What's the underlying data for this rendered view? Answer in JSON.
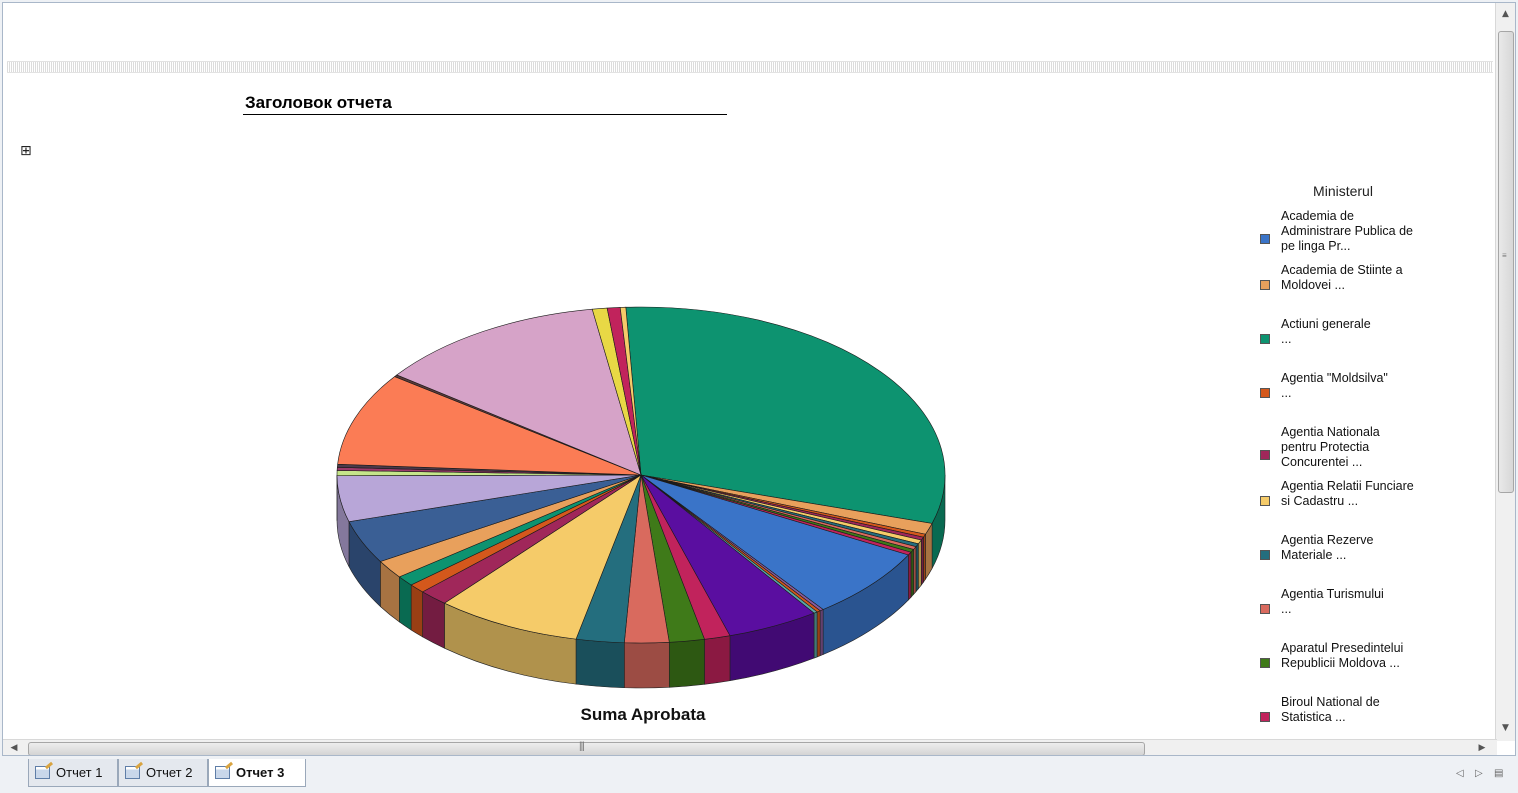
{
  "report": {
    "title": "Заголовок отчета",
    "expand_glyph": "⊞"
  },
  "chart_data": {
    "type": "pie",
    "title": "Suma Aprobata",
    "legend_title": "Ministerul",
    "legend_placement": "right",
    "series": [
      {
        "name": "Academia de Administrare Publica de pe linga Pr...",
        "value": 7.0,
        "color": "#3a74c8"
      },
      {
        "name": "Academia de Stiinte a Moldovei",
        "value": 1.1,
        "color": "#e8a05c"
      },
      {
        "name": "Actiuni generale",
        "value": 31.0,
        "color": "#0d9370"
      },
      {
        "name": "Agentia \"Moldsilva\"",
        "value": 0.3,
        "color": "#d4581c"
      },
      {
        "name": "Agentia Nationala pentru Protectia Concurentei ...",
        "value": 0.3,
        "color": "#a0275a"
      },
      {
        "name": "Agentia Relatii Funciare si Cadastru",
        "value": 0.4,
        "color": "#f5cb69"
      },
      {
        "name": "Agentia Rezerve Materiale",
        "value": 0.3,
        "color": "#246e7e"
      },
      {
        "name": "Agentia Turismului",
        "value": 0.3,
        "color": "#d96a5e"
      },
      {
        "name": "Aparatul Presedintelui Republicii Moldova",
        "value": 0.3,
        "color": "#3f7a19"
      },
      {
        "name": "Biroul National de Statistica",
        "value": 0.3,
        "color": "#c1235c"
      }
    ]
  },
  "legend": {
    "items": [
      {
        "label": "Academia de\nAdministrare Publica de\npe linga Pr...",
        "color": "#3a74c8"
      },
      {
        "label": "Academia de Stiinte a\nMoldovei                ...",
        "color": "#e8a05c"
      },
      {
        "label": "Actiuni generale\n...",
        "color": "#0d9370"
      },
      {
        "label": "Agentia \"Moldsilva\"\n...",
        "color": "#d4581c"
      },
      {
        "label": "Agentia Nationala\npentru Protectia\nConcurentei ...",
        "color": "#a0275a"
      },
      {
        "label": "Agentia Relatii Funciare\nsi Cadastru          ...",
        "color": "#f5cb69"
      },
      {
        "label": "Agentia Rezerve\nMateriale                    ...",
        "color": "#246e7e"
      },
      {
        "label": "Agentia Turismului\n...",
        "color": "#d96a5e"
      },
      {
        "label": "Aparatul Presedintelui\nRepublicii Moldova      ...",
        "color": "#3f7a19"
      },
      {
        "label": "Biroul National de\nStatistica                 ...",
        "color": "#c1235c"
      }
    ]
  },
  "tabs": [
    {
      "label": "Отчет 1",
      "active": false
    },
    {
      "label": "Отчет 2",
      "active": false
    },
    {
      "label": "Отчет 3",
      "active": true
    }
  ],
  "scrollbars": {
    "up": "▲",
    "down": "▼",
    "left": "◀",
    "right": "▶"
  },
  "navigation": {
    "prev": "◁",
    "next": "▷",
    "menu": "▤"
  }
}
